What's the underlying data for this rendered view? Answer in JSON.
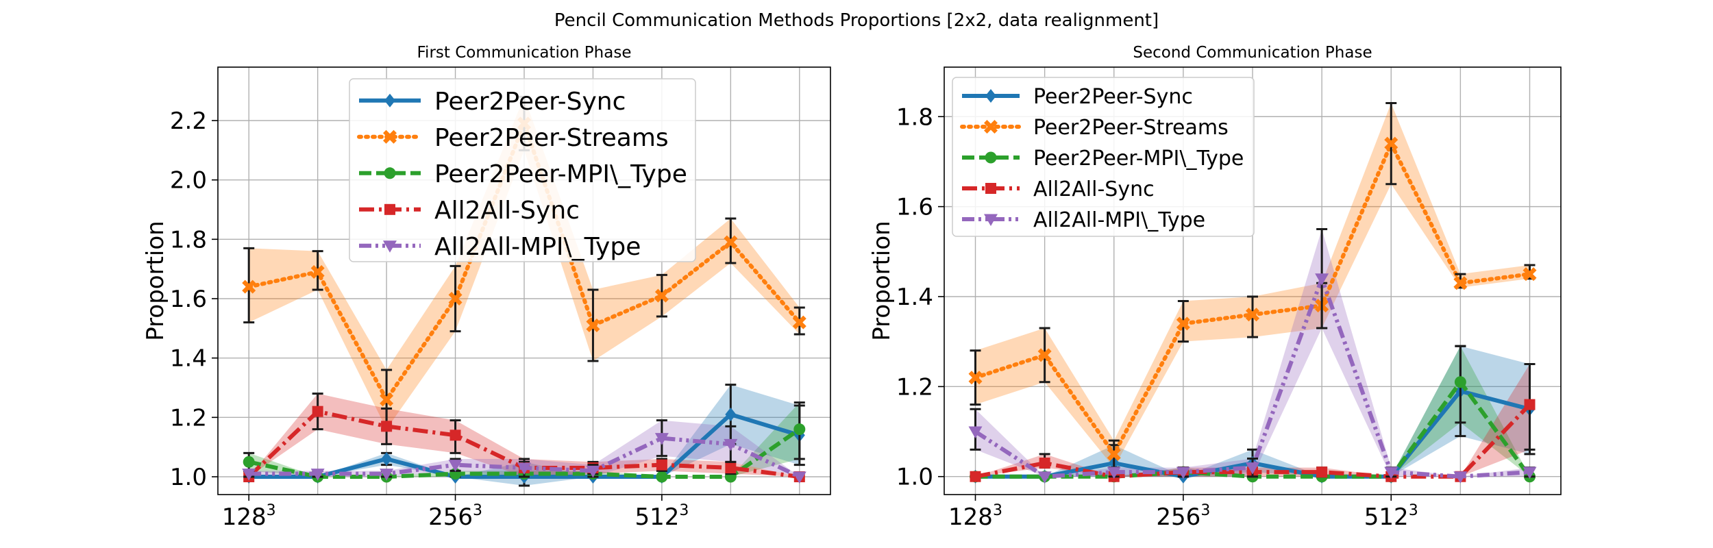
{
  "suptitle": "Pencil Communication Methods Proportions [2x2, data realignment]",
  "colors": {
    "Peer2Peer-Sync": "#1f77b4",
    "Peer2Peer-Streams": "#ff7f0e",
    "Peer2Peer-MPI\\_Type": "#2ca02c",
    "All2All-Sync": "#d62728",
    "All2All-MPI\\_Type": "#9467bd"
  },
  "chart_data": [
    {
      "type": "line",
      "title": "First Communication Phase",
      "xlabel": "",
      "ylabel": "Proportion",
      "x_positions": [
        0,
        1,
        2,
        3,
        4,
        5,
        6,
        7,
        8
      ],
      "x_tick_labels": [
        {
          "at": 0,
          "base": "128",
          "exp": "3"
        },
        {
          "at": 3,
          "base": "256",
          "exp": "3"
        },
        {
          "at": 6,
          "base": "512",
          "exp": "3"
        }
      ],
      "ylim": [
        0.94,
        2.38
      ],
      "yticks": [
        1.0,
        1.2,
        1.4,
        1.6,
        1.8,
        2.0,
        2.2
      ],
      "ytick_labels": [
        "1.0",
        "1.2",
        "1.4",
        "1.6",
        "1.8",
        "2.0",
        "2.2"
      ],
      "grid": true,
      "legend_placement": "upper center",
      "series": [
        {
          "name": "Peer2Peer-Sync",
          "marker": "diamond",
          "linestyle": "solid",
          "values": [
            1.0,
            1.0,
            1.06,
            1.0,
            1.0,
            1.0,
            1.0,
            1.21,
            1.14
          ],
          "lower": [
            1.0,
            1.0,
            1.04,
            1.0,
            0.97,
            1.0,
            1.0,
            1.11,
            1.04
          ],
          "upper": [
            1.0,
            1.0,
            1.08,
            1.0,
            1.05,
            1.0,
            1.0,
            1.31,
            1.24
          ]
        },
        {
          "name": "Peer2Peer-Streams",
          "marker": "x",
          "linestyle": "dotted",
          "values": [
            1.64,
            1.69,
            1.26,
            1.6,
            2.19,
            1.51,
            1.61,
            1.79,
            1.52
          ],
          "lower": [
            1.52,
            1.63,
            1.16,
            1.49,
            2.1,
            1.39,
            1.54,
            1.72,
            1.48
          ],
          "upper": [
            1.77,
            1.76,
            1.36,
            1.71,
            2.28,
            1.63,
            1.68,
            1.87,
            1.57
          ]
        },
        {
          "name": "Peer2Peer-MPI\\_Type",
          "marker": "circle",
          "linestyle": "dashed",
          "values": [
            1.05,
            1.0,
            1.0,
            1.01,
            1.01,
            1.01,
            1.0,
            1.0,
            1.16
          ],
          "lower": [
            1.02,
            1.0,
            1.0,
            1.0,
            1.0,
            1.0,
            1.0,
            1.0,
            1.06
          ],
          "upper": [
            1.08,
            1.0,
            1.0,
            1.02,
            1.02,
            1.02,
            1.0,
            1.0,
            1.25
          ]
        },
        {
          "name": "All2All-Sync",
          "marker": "square",
          "linestyle": "dashdot",
          "values": [
            1.0,
            1.22,
            1.17,
            1.14,
            1.03,
            1.03,
            1.04,
            1.03,
            1.0
          ],
          "lower": [
            1.0,
            1.16,
            1.11,
            1.08,
            1.0,
            1.01,
            1.02,
            1.01,
            1.0
          ],
          "upper": [
            1.0,
            1.28,
            1.23,
            1.19,
            1.06,
            1.05,
            1.06,
            1.05,
            1.0
          ]
        },
        {
          "name": "All2All-MPI\\_Type",
          "marker": "triangle-down",
          "linestyle": "dashdotdot",
          "values": [
            1.01,
            1.01,
            1.01,
            1.04,
            1.03,
            1.02,
            1.13,
            1.11,
            1.0
          ],
          "lower": [
            1.0,
            1.0,
            1.0,
            1.02,
            1.0,
            1.0,
            1.07,
            1.05,
            1.0
          ],
          "upper": [
            1.02,
            1.02,
            1.02,
            1.06,
            1.06,
            1.04,
            1.19,
            1.17,
            1.0
          ]
        }
      ]
    },
    {
      "type": "line",
      "title": "Second Communication Phase",
      "xlabel": "",
      "ylabel": "Proportion",
      "x_positions": [
        0,
        1,
        2,
        3,
        4,
        5,
        6,
        7,
        8
      ],
      "x_tick_labels": [
        {
          "at": 0,
          "base": "128",
          "exp": "3"
        },
        {
          "at": 3,
          "base": "256",
          "exp": "3"
        },
        {
          "at": 6,
          "base": "512",
          "exp": "3"
        }
      ],
      "ylim": [
        0.96,
        1.91
      ],
      "yticks": [
        1.0,
        1.2,
        1.4,
        1.6,
        1.8
      ],
      "ytick_labels": [
        "1.0",
        "1.2",
        "1.4",
        "1.6",
        "1.8"
      ],
      "grid": true,
      "legend_placement": "upper left",
      "series": [
        {
          "name": "Peer2Peer-Sync",
          "marker": "diamond",
          "linestyle": "solid",
          "values": [
            1.0,
            1.0,
            1.03,
            1.0,
            1.03,
            1.0,
            1.0,
            1.19,
            1.15
          ],
          "lower": [
            1.0,
            1.0,
            1.0,
            1.0,
            1.01,
            1.0,
            1.0,
            1.09,
            1.05
          ],
          "upper": [
            1.0,
            1.0,
            1.07,
            1.0,
            1.06,
            1.0,
            1.0,
            1.29,
            1.25
          ]
        },
        {
          "name": "Peer2Peer-Streams",
          "marker": "x",
          "linestyle": "dotted",
          "values": [
            1.22,
            1.27,
            1.05,
            1.34,
            1.36,
            1.38,
            1.74,
            1.43,
            1.45
          ],
          "lower": [
            1.16,
            1.21,
            1.02,
            1.3,
            1.31,
            1.33,
            1.65,
            1.42,
            1.44
          ],
          "upper": [
            1.28,
            1.33,
            1.08,
            1.39,
            1.4,
            1.43,
            1.83,
            1.45,
            1.47
          ]
        },
        {
          "name": "Peer2Peer-MPI\\_Type",
          "marker": "circle",
          "linestyle": "dashed",
          "values": [
            1.0,
            1.0,
            1.0,
            1.01,
            1.0,
            1.0,
            1.0,
            1.21,
            1.0
          ],
          "lower": [
            1.0,
            1.0,
            1.0,
            1.0,
            1.0,
            1.0,
            1.0,
            1.12,
            1.0
          ],
          "upper": [
            1.0,
            1.0,
            1.0,
            1.02,
            1.0,
            1.0,
            1.0,
            1.29,
            1.0
          ]
        },
        {
          "name": "All2All-Sync",
          "marker": "square",
          "linestyle": "dashdot",
          "values": [
            1.0,
            1.03,
            1.0,
            1.01,
            1.01,
            1.01,
            1.0,
            1.0,
            1.16
          ],
          "lower": [
            1.0,
            1.02,
            1.0,
            1.0,
            1.0,
            1.0,
            1.0,
            1.0,
            1.06
          ],
          "upper": [
            1.0,
            1.05,
            1.0,
            1.02,
            1.02,
            1.02,
            1.0,
            1.0,
            1.25
          ]
        },
        {
          "name": "All2All-MPI\\_Type",
          "marker": "triangle-down",
          "linestyle": "dashdotdot",
          "values": [
            1.1,
            1.0,
            1.01,
            1.01,
            1.02,
            1.44,
            1.01,
            1.0,
            1.01
          ],
          "lower": [
            1.06,
            1.0,
            1.0,
            1.0,
            1.0,
            1.33,
            1.0,
            1.0,
            1.0
          ],
          "upper": [
            1.15,
            1.0,
            1.02,
            1.02,
            1.04,
            1.55,
            1.02,
            1.0,
            1.02
          ]
        }
      ]
    }
  ]
}
